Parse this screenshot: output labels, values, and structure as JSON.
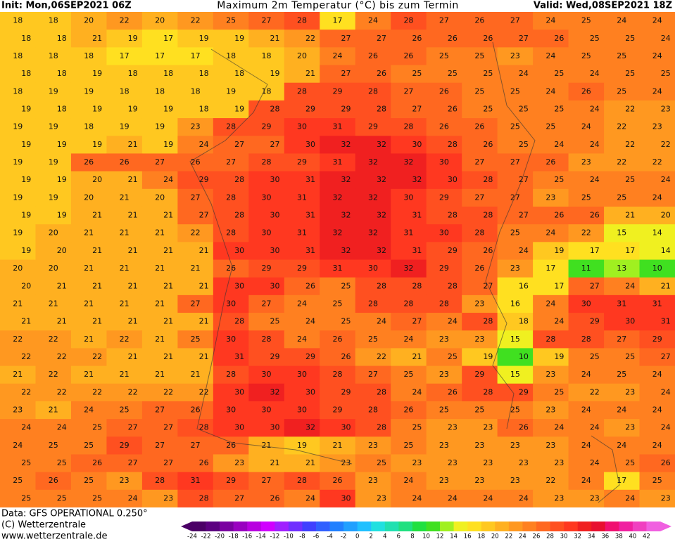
{
  "header": {
    "init": "Init: Mon,06SEP2021 06Z",
    "title": "Maximum 2m Temperatur (°C) bis zum Termin",
    "valid": "Valid: Wed,08SEP2021 18Z"
  },
  "footer": {
    "data": "Data: GFS OPERATIONAL 0.250°",
    "copyright": "(C) Wetterzentrale",
    "url": "www.wetterzentrale.de"
  },
  "scale": [
    {
      "value": -24,
      "color": "#4b0066"
    },
    {
      "value": -22,
      "color": "#5c0080"
    },
    {
      "value": -20,
      "color": "#7a00a0"
    },
    {
      "value": -18,
      "color": "#9900c0"
    },
    {
      "value": -16,
      "color": "#b800e0"
    },
    {
      "value": -14,
      "color": "#d000ff"
    },
    {
      "value": -12,
      "color": "#a020ff"
    },
    {
      "value": -10,
      "color": "#7030ff"
    },
    {
      "value": -8,
      "color": "#4040ff"
    },
    {
      "value": -6,
      "color": "#3060ff"
    },
    {
      "value": -4,
      "color": "#2080ff"
    },
    {
      "value": -2,
      "color": "#20a0ff"
    },
    {
      "value": 0,
      "color": "#20c0ff"
    },
    {
      "value": 2,
      "color": "#20e0e0"
    },
    {
      "value": 4,
      "color": "#20e0b0"
    },
    {
      "value": 6,
      "color": "#20e080"
    },
    {
      "value": 8,
      "color": "#20e040"
    },
    {
      "value": 10,
      "color": "#40e020"
    },
    {
      "value": 12,
      "color": "#a0f020"
    },
    {
      "value": 14,
      "color": "#f0f020"
    },
    {
      "value": 16,
      "color": "#ffe020"
    },
    {
      "value": 18,
      "color": "#ffc820"
    },
    {
      "value": 20,
      "color": "#ffb020"
    },
    {
      "value": 22,
      "color": "#ff9820"
    },
    {
      "value": 24,
      "color": "#ff8020"
    },
    {
      "value": 26,
      "color": "#ff6820"
    },
    {
      "value": 28,
      "color": "#ff5020"
    },
    {
      "value": 30,
      "color": "#ff3820"
    },
    {
      "value": 32,
      "color": "#f02020"
    },
    {
      "value": 34,
      "color": "#e81030"
    },
    {
      "value": 36,
      "color": "#f01070"
    },
    {
      "value": 38,
      "color": "#f020a0"
    },
    {
      "value": 40,
      "color": "#f040c0"
    },
    {
      "value": 42,
      "color": "#f060e0"
    }
  ],
  "grid": [
    [
      18,
      18,
      20,
      22,
      20,
      22,
      25,
      27,
      28,
      17,
      24,
      28,
      27,
      26,
      27,
      24,
      25,
      24,
      24
    ],
    [
      18,
      18,
      21,
      19,
      17,
      19,
      19,
      21,
      22,
      27,
      27,
      26,
      26,
      26,
      27,
      26,
      25,
      25,
      24
    ],
    [
      18,
      18,
      18,
      17,
      17,
      17,
      18,
      18,
      20,
      24,
      26,
      26,
      25,
      25,
      23,
      24,
      25,
      25,
      24
    ],
    [
      18,
      18,
      19,
      18,
      18,
      18,
      18,
      19,
      21,
      27,
      26,
      25,
      25,
      25,
      24,
      25,
      24,
      25,
      25
    ],
    [
      18,
      19,
      19,
      18,
      18,
      18,
      19,
      18,
      28,
      29,
      28,
      27,
      26,
      25,
      25,
      24,
      26,
      25,
      24
    ],
    [
      19,
      18,
      19,
      19,
      19,
      18,
      19,
      28,
      29,
      29,
      28,
      27,
      26,
      25,
      25,
      25,
      24,
      22,
      23
    ],
    [
      19,
      19,
      18,
      19,
      19,
      23,
      28,
      29,
      30,
      31,
      29,
      28,
      26,
      26,
      25,
      25,
      24,
      22,
      23
    ],
    [
      19,
      19,
      19,
      21,
      19,
      24,
      27,
      27,
      30,
      32,
      32,
      30,
      28,
      26,
      25,
      24,
      24,
      22,
      22
    ],
    [
      19,
      19,
      26,
      26,
      27,
      26,
      27,
      28,
      29,
      31,
      32,
      32,
      30,
      27,
      27,
      26,
      23,
      22,
      22
    ],
    [
      19,
      19,
      20,
      21,
      24,
      29,
      28,
      30,
      31,
      32,
      32,
      32,
      30,
      28,
      27,
      25,
      24,
      25,
      24
    ],
    [
      19,
      19,
      20,
      21,
      20,
      27,
      28,
      30,
      31,
      32,
      32,
      30,
      29,
      27,
      27,
      23,
      25,
      25,
      24
    ],
    [
      19,
      19,
      21,
      21,
      21,
      27,
      28,
      30,
      31,
      32,
      32,
      31,
      28,
      28,
      27,
      26,
      26,
      21,
      20
    ],
    [
      19,
      20,
      21,
      21,
      21,
      22,
      28,
      30,
      31,
      32,
      32,
      31,
      30,
      28,
      25,
      24,
      22,
      15,
      14
    ],
    [
      19,
      20,
      21,
      21,
      21,
      21,
      30,
      30,
      31,
      32,
      32,
      31,
      29,
      26,
      24,
      19,
      17,
      17,
      14
    ],
    [
      20,
      20,
      21,
      21,
      21,
      21,
      26,
      29,
      29,
      31,
      30,
      32,
      29,
      26,
      23,
      17,
      11,
      13,
      10
    ],
    [
      20,
      21,
      21,
      21,
      21,
      21,
      30,
      30,
      26,
      25,
      28,
      28,
      28,
      27,
      16,
      17,
      27,
      24,
      21
    ],
    [
      21,
      21,
      21,
      21,
      21,
      27,
      30,
      27,
      24,
      25,
      28,
      28,
      28,
      23,
      16,
      24,
      30,
      31,
      31
    ],
    [
      21,
      21,
      21,
      21,
      21,
      21,
      28,
      25,
      24,
      25,
      24,
      27,
      24,
      28,
      18,
      24,
      29,
      30,
      31
    ],
    [
      22,
      22,
      21,
      22,
      21,
      25,
      30,
      28,
      24,
      26,
      25,
      24,
      23,
      23,
      15,
      28,
      28,
      27,
      29
    ],
    [
      22,
      22,
      22,
      21,
      21,
      21,
      31,
      29,
      29,
      26,
      22,
      21,
      25,
      19,
      10,
      19,
      25,
      25,
      27
    ],
    [
      21,
      22,
      21,
      21,
      21,
      21,
      28,
      30,
      30,
      28,
      27,
      25,
      23,
      29,
      15,
      23,
      24,
      25,
      24
    ],
    [
      22,
      22,
      22,
      22,
      22,
      22,
      30,
      32,
      30,
      29,
      28,
      24,
      26,
      28,
      29,
      25,
      22,
      23,
      24
    ],
    [
      23,
      21,
      24,
      25,
      27,
      26,
      30,
      30,
      30,
      29,
      28,
      26,
      25,
      25,
      25,
      23,
      24,
      24,
      24
    ],
    [
      24,
      24,
      25,
      27,
      27,
      28,
      30,
      30,
      32,
      30,
      28,
      25,
      23,
      23,
      26,
      24,
      24,
      23,
      24
    ],
    [
      24,
      25,
      25,
      29,
      27,
      27,
      26,
      21,
      19,
      21,
      23,
      25,
      23,
      23,
      23,
      23,
      24,
      24,
      24
    ],
    [
      25,
      25,
      26,
      27,
      27,
      26,
      23,
      21,
      21,
      23,
      25,
      23,
      23,
      23,
      23,
      23,
      24,
      25,
      26
    ],
    [
      25,
      26,
      25,
      23,
      28,
      31,
      29,
      27,
      28,
      26,
      23,
      24,
      23,
      23,
      23,
      22,
      24,
      17,
      25
    ],
    [
      25,
      25,
      25,
      24,
      23,
      28,
      27,
      26,
      24,
      30,
      23,
      24,
      24,
      24,
      24,
      23,
      23,
      24,
      23
    ]
  ]
}
